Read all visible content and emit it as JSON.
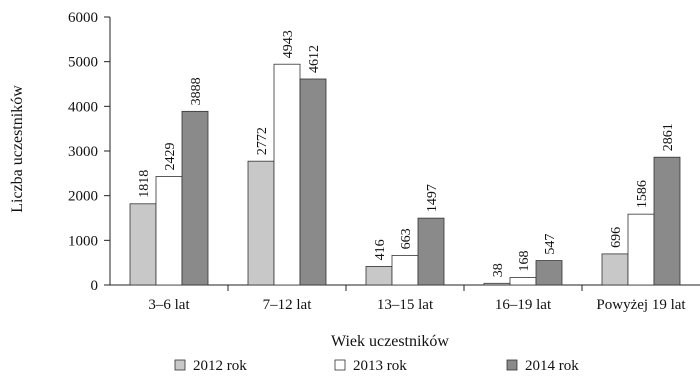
{
  "chart_data": {
    "type": "bar",
    "title": "",
    "xlabel": "Wiek uczestników",
    "ylabel": "Liczba uczestników",
    "categories": [
      "3–6 lat",
      "7–12 lat",
      "13–15 lat",
      "16–19 lat",
      "Powyżej 19 lat"
    ],
    "series": [
      {
        "name": "2012 rok",
        "values": [
          1818,
          2772,
          416,
          38,
          696
        ],
        "color": "#c8c8c8"
      },
      {
        "name": "2013 rok",
        "values": [
          2429,
          4943,
          663,
          168,
          1586
        ],
        "color": "#ffffff"
      },
      {
        "name": "2014 rok",
        "values": [
          3888,
          4612,
          1497,
          547,
          2861
        ],
        "color": "#8a8a8a"
      }
    ],
    "ylim": [
      0,
      6000
    ],
    "yticks": [
      0,
      1000,
      2000,
      3000,
      4000,
      5000,
      6000
    ],
    "grid": false,
    "legend_position": "bottom",
    "data_labels": true
  }
}
